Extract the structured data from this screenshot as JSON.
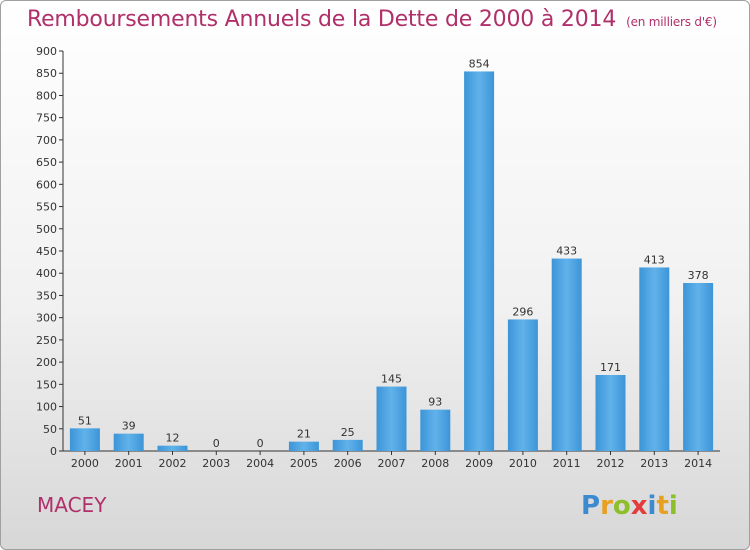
{
  "title": "Remboursements Annuels de la Dette de 2000 à 2014",
  "unit": "(en milliers d'€)",
  "town": "MACEY",
  "logo": "Proxiti",
  "colors": {
    "accent": "#b0306a",
    "bar": "#3c95d8",
    "bar_light": "#61b2ea"
  },
  "chart_data": {
    "type": "bar",
    "title": "Remboursements Annuels de la Dette de 2000 à 2014",
    "xlabel": "",
    "ylabel": "",
    "categories": [
      "2000",
      "2001",
      "2002",
      "2003",
      "2004",
      "2005",
      "2006",
      "2007",
      "2008",
      "2009",
      "2010",
      "2011",
      "2012",
      "2013",
      "2014"
    ],
    "values": [
      51,
      39,
      12,
      0,
      0,
      21,
      25,
      145,
      93,
      854,
      296,
      433,
      171,
      413,
      378
    ],
    "ylim": [
      0,
      900
    ],
    "yticks": [
      0,
      50,
      100,
      150,
      200,
      250,
      300,
      350,
      400,
      450,
      500,
      550,
      600,
      650,
      700,
      750,
      800,
      850,
      900
    ],
    "grid": false,
    "legend": "none"
  }
}
